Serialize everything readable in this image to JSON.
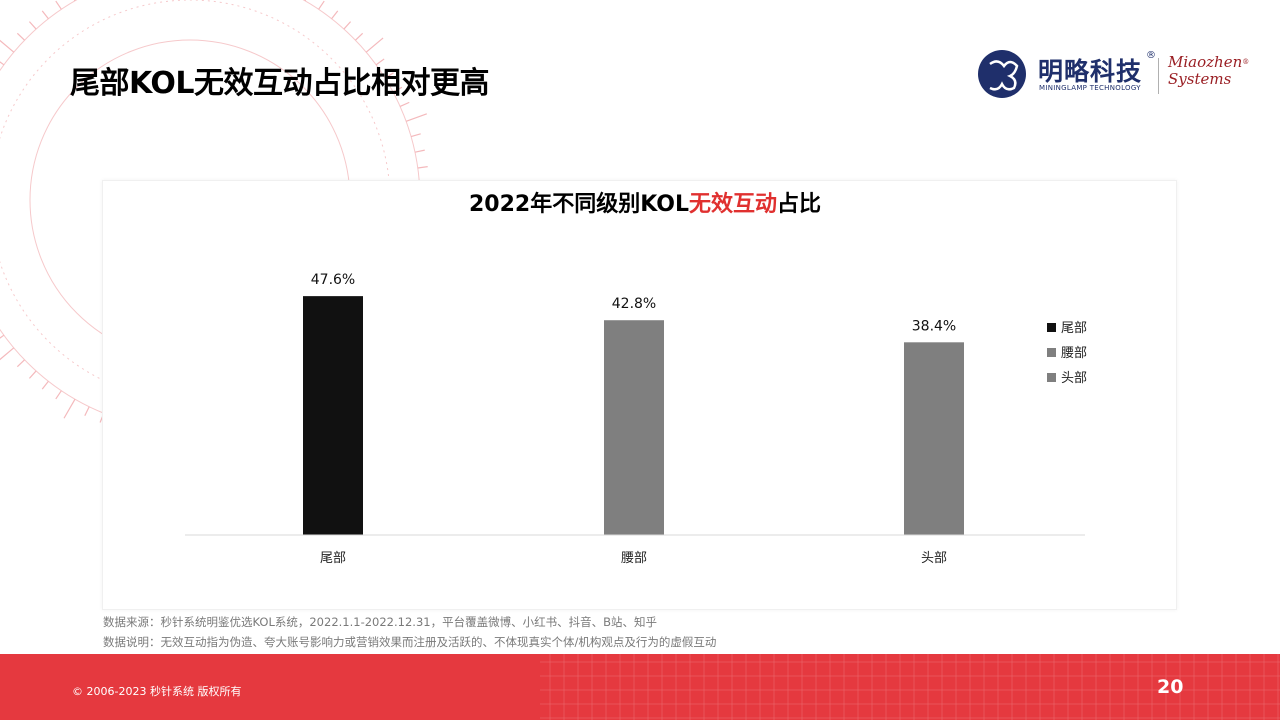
{
  "page": {
    "title": "尾部KOL无效互动占比相对更高",
    "page_number": "20",
    "copyright": "© 2006-2023 秒针系统 版权所有"
  },
  "logo": {
    "cn_name": "明略科技",
    "registered": "®",
    "en_name": "MININGLAMP TECHNOLOGY",
    "partner_line1": "Miaozhen",
    "partner_line2": "Systems",
    "partner_registered": "®"
  },
  "source": {
    "line1": "数据来源：秒针系统明鉴优选KOL系统，2022.1.1-2022.12.31，平台覆盖微博、小红书、抖音、B站、知乎",
    "line2": "数据说明：无效互动指为伪造、夸大账号影响力或营销效果而注册及活跃的、不体现真实个体/机构观点及行为的虚假互动"
  },
  "colors": {
    "accent_red": "#e5393f",
    "title_highlight": "#e0302f",
    "bar_dark": "#111111",
    "bar_gray": "#7f7f7f"
  },
  "chart_data": {
    "type": "bar",
    "title_prefix": "2022年不同级别KOL",
    "title_highlight": "无效互动",
    "title_suffix": "占比",
    "categories": [
      "尾部",
      "腰部",
      "头部"
    ],
    "values": [
      47.6,
      42.8,
      38.4
    ],
    "data_labels": [
      "47.6%",
      "42.8%",
      "38.4%"
    ],
    "bar_colors": [
      "#111111",
      "#7f7f7f",
      "#7f7f7f"
    ],
    "legend": [
      "尾部",
      "腰部",
      "头部"
    ],
    "legend_position": "right",
    "ylim": [
      0,
      55
    ],
    "grid": false,
    "xlabel": "",
    "ylabel": ""
  }
}
